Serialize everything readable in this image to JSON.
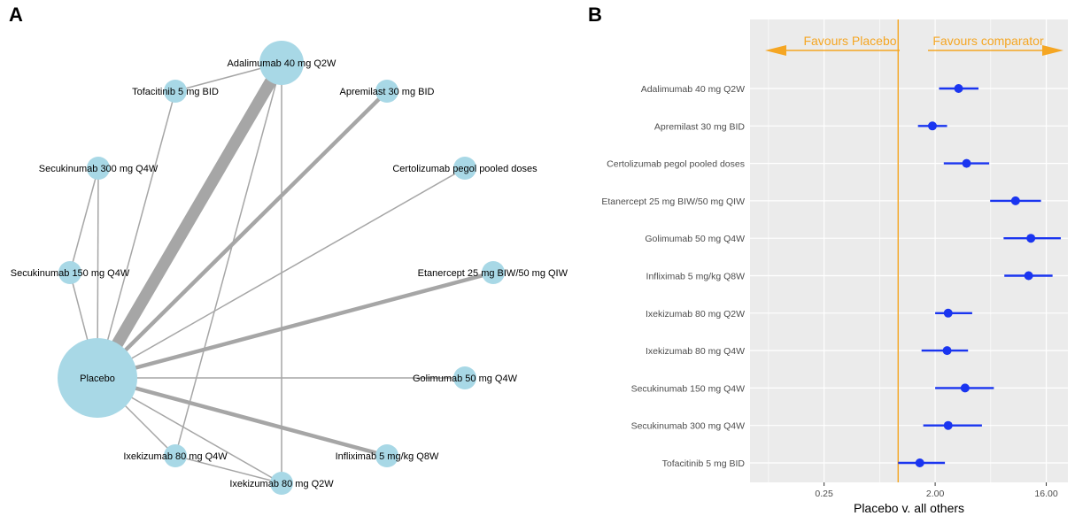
{
  "panels": {
    "a_label": "A",
    "b_label": "B"
  },
  "colors": {
    "node_fill": "#a8d8e6",
    "edge": "#a6a6a6",
    "panel_bg": "#ebebeb",
    "grid": "#ffffff",
    "point": "#1a35f0",
    "reference_line": "#f5a623",
    "arrow_text": "#f5a623"
  },
  "chart_data": [
    {
      "type": "network",
      "nodes": [
        {
          "id": "adalimumab",
          "label": "Adalimumab 40 mg Q2W",
          "size": "large"
        },
        {
          "id": "tofacitinib",
          "label": "Tofacitinib 5 mg BID",
          "size": "small"
        },
        {
          "id": "apremilast",
          "label": "Apremilast 30 mg BID",
          "size": "small"
        },
        {
          "id": "secukinumab300",
          "label": "Secukinumab 300 mg Q4W",
          "size": "small"
        },
        {
          "id": "certolizumab",
          "label": "Certolizumab pegol pooled doses",
          "size": "small"
        },
        {
          "id": "secukinumab150",
          "label": "Secukinumab 150 mg Q4W",
          "size": "small"
        },
        {
          "id": "etanercept",
          "label": "Etanercept 25 mg BIW/50 mg QIW",
          "size": "small"
        },
        {
          "id": "placebo",
          "label": "Placebo",
          "size": "largest"
        },
        {
          "id": "golimumab",
          "label": "Golimumab 50 mg Q4W",
          "size": "small"
        },
        {
          "id": "ixekizumab_q4w",
          "label": "Ixekizumab 80 mg Q4W",
          "size": "small"
        },
        {
          "id": "infliximab",
          "label": "Infliximab 5 mg/kg Q8W",
          "size": "small"
        },
        {
          "id": "ixekizumab_q2w",
          "label": "Ixekizumab 80 mg Q2W",
          "size": "small"
        }
      ],
      "edges": [
        {
          "from": "placebo",
          "to": "adalimumab",
          "weight": 9
        },
        {
          "from": "placebo",
          "to": "apremilast",
          "weight": 3
        },
        {
          "from": "placebo",
          "to": "etanercept",
          "weight": 3
        },
        {
          "from": "placebo",
          "to": "infliximab",
          "weight": 3
        },
        {
          "from": "placebo",
          "to": "certolizumab",
          "weight": 1
        },
        {
          "from": "placebo",
          "to": "golimumab",
          "weight": 1
        },
        {
          "from": "placebo",
          "to": "tofacitinib",
          "weight": 1
        },
        {
          "from": "placebo",
          "to": "secukinumab300",
          "weight": 1
        },
        {
          "from": "placebo",
          "to": "secukinumab150",
          "weight": 1
        },
        {
          "from": "placebo",
          "to": "ixekizumab_q4w",
          "weight": 1
        },
        {
          "from": "placebo",
          "to": "ixekizumab_q2w",
          "weight": 1
        },
        {
          "from": "adalimumab",
          "to": "tofacitinib",
          "weight": 1
        },
        {
          "from": "adalimumab",
          "to": "ixekizumab_q2w",
          "weight": 1
        },
        {
          "from": "adalimumab",
          "to": "ixekizumab_q4w",
          "weight": 1
        },
        {
          "from": "secukinumab300",
          "to": "secukinumab150",
          "weight": 1
        },
        {
          "from": "ixekizumab_q4w",
          "to": "ixekizumab_q2w",
          "weight": 1
        }
      ]
    },
    {
      "type": "forest",
      "xlabel": "Placebo v. all others",
      "xscale": "log2",
      "xlim": [
        0.0625,
        24
      ],
      "xticks": [
        0.25,
        2.0,
        16.0
      ],
      "xtick_labels": [
        "0.25",
        "2.00",
        "16.00"
      ],
      "reference": 1,
      "grid": true,
      "arrow_left_text": "Favours Placebo",
      "arrow_right_text": "Favours comparator",
      "rows": [
        {
          "label": "Adalimumab 40 mg Q2W",
          "estimate": 3.1,
          "lower": 2.15,
          "upper": 4.5
        },
        {
          "label": "Apremilast 30 mg BID",
          "estimate": 1.9,
          "lower": 1.45,
          "upper": 2.5
        },
        {
          "label": "Certolizumab pegol pooled doses",
          "estimate": 3.6,
          "lower": 2.35,
          "upper": 5.5
        },
        {
          "label": "Etanercept 25 mg BIW/50 mg QIW",
          "estimate": 9.0,
          "lower": 5.6,
          "upper": 14.5
        },
        {
          "label": "Golimumab 50 mg Q4W",
          "estimate": 12.0,
          "lower": 7.2,
          "upper": 21.0
        },
        {
          "label": "Infliximab 5 mg/kg Q8W",
          "estimate": 11.5,
          "lower": 7.3,
          "upper": 18.0
        },
        {
          "label": "Ixekizumab 80 mg Q2W",
          "estimate": 2.55,
          "lower": 2.0,
          "upper": 4.0
        },
        {
          "label": "Ixekizumab 80 mg Q4W",
          "estimate": 2.5,
          "lower": 1.55,
          "upper": 3.7
        },
        {
          "label": "Secukinumab 150 mg Q4W",
          "estimate": 3.5,
          "lower": 2.0,
          "upper": 6.0
        },
        {
          "label": "Secukinumab 300 mg Q4W",
          "estimate": 2.55,
          "lower": 1.6,
          "upper": 4.8
        },
        {
          "label": "Tofacitinib 5 mg BID",
          "estimate": 1.5,
          "lower": 1.0,
          "upper": 2.4
        }
      ]
    }
  ]
}
